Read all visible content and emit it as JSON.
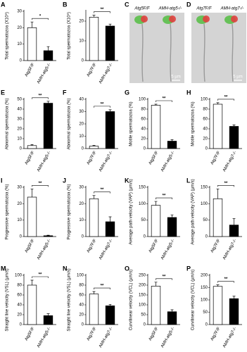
{
  "chart_data": [
    {
      "type": "bar",
      "panel": "A",
      "ylabel": "Total spermatozoa (X10⁶)",
      "categories": [
        "Atg5F/F",
        "AMH-atg5-/-"
      ],
      "values": [
        20,
        6
      ],
      "errors": [
        3.5,
        2.5
      ],
      "significance": "*",
      "colors": [
        "#ffffff",
        "#000000"
      ],
      "ylim": [
        0,
        30
      ],
      "yticks": [
        0,
        10,
        20,
        30
      ]
    },
    {
      "type": "bar",
      "panel": "B",
      "ylabel": "Total spermatozoa (X10⁶)",
      "categories": [
        "Atg7F/F",
        "AMH-atg7-/-"
      ],
      "values": [
        22,
        17.5
      ],
      "errors": [
        1,
        1
      ],
      "significance": "**",
      "colors": [
        "#ffffff",
        "#000000"
      ],
      "ylim": [
        0,
        25
      ],
      "yticks": [
        0,
        10,
        20
      ]
    },
    {
      "type": "bar",
      "panel": "E",
      "ylabel": "Abnormal spermatozoa (%)",
      "categories": [
        "Atg5F/F",
        "AMH-atg5-/-"
      ],
      "values": [
        3,
        46
      ],
      "errors": [
        1,
        2
      ],
      "significance": "**",
      "colors": [
        "#ffffff",
        "#000000"
      ],
      "ylim": [
        0,
        50
      ],
      "yticks": [
        0,
        10,
        20,
        30,
        40,
        50
      ]
    },
    {
      "type": "bar",
      "panel": "F",
      "ylabel": "Abnormal spermatozoa (%)",
      "categories": [
        "Atg7F/F",
        "AMH-atg7-/-"
      ],
      "values": [
        2,
        30
      ],
      "errors": [
        0.5,
        1.5
      ],
      "significance": "**",
      "colors": [
        "#ffffff",
        "#000000"
      ],
      "ylim": [
        0,
        40
      ],
      "yticks": [
        0,
        10,
        20,
        30,
        40
      ]
    },
    {
      "type": "bar",
      "panel": "G",
      "ylabel": "Motile spermatozoa (%)",
      "categories": [
        "Atg5F/F",
        "AMH-atg5-/-"
      ],
      "values": [
        88,
        15
      ],
      "errors": [
        2,
        3
      ],
      "significance": "**",
      "colors": [
        "#ffffff",
        "#000000"
      ],
      "ylim": [
        0,
        100
      ],
      "yticks": [
        0,
        20,
        40,
        60,
        80,
        100
      ]
    },
    {
      "type": "bar",
      "panel": "H",
      "ylabel": "Motile spermatozoa (%)",
      "categories": [
        "Atg7F/F",
        "AMH-atg7-/-"
      ],
      "values": [
        90,
        45
      ],
      "errors": [
        3,
        3
      ],
      "significance": "**",
      "colors": [
        "#ffffff",
        "#000000"
      ],
      "ylim": [
        0,
        100
      ],
      "yticks": [
        0,
        20,
        40,
        60,
        80,
        100
      ]
    },
    {
      "type": "bar",
      "panel": "I",
      "ylabel": "Progressive spermatozoa (%)",
      "categories": [
        "Atg5F/F",
        "AMH-atg5-/-"
      ],
      "values": [
        24,
        0.5
      ],
      "errors": [
        5,
        0.3
      ],
      "significance": "**",
      "colors": [
        "#ffffff",
        "#000000"
      ],
      "ylim": [
        0,
        30
      ],
      "yticks": [
        0,
        10,
        20,
        30
      ]
    },
    {
      "type": "bar",
      "panel": "J",
      "ylabel": "Progressive spermatozoa (%)",
      "categories": [
        "Atg7F/F",
        "AMH-atg7-/-"
      ],
      "values": [
        23,
        9
      ],
      "errors": [
        2,
        3
      ],
      "significance": "**",
      "colors": [
        "#ffffff",
        "#000000"
      ],
      "ylim": [
        0,
        30
      ],
      "yticks": [
        0,
        10,
        20,
        30
      ]
    },
    {
      "type": "bar",
      "panel": "K",
      "ylabel": "Average path velocity (VAP) (µm/s)",
      "categories": [
        "Atg5F/F",
        "AMH-atg5-/-"
      ],
      "values": [
        95,
        58
      ],
      "errors": [
        12,
        8
      ],
      "significance": "**",
      "colors": [
        "#ffffff",
        "#000000"
      ],
      "ylim": [
        0,
        150
      ],
      "yticks": [
        0,
        50,
        100,
        150
      ]
    },
    {
      "type": "bar",
      "panel": "L",
      "ylabel": "Average path velocity (VAP) (µm/s)",
      "categories": [
        "Atg7F/F",
        "AMH-atg7-/-"
      ],
      "values": [
        115,
        35
      ],
      "errors": [
        30,
        20
      ],
      "significance": "**",
      "colors": [
        "#ffffff",
        "#000000"
      ],
      "ylim": [
        0,
        150
      ],
      "yticks": [
        0,
        50,
        100,
        150
      ]
    },
    {
      "type": "bar",
      "panel": "M",
      "ylabel": "Straight line velocity (VSL) (µm/s)",
      "categories": [
        "Atg5F/F",
        "AMH-atg5-/-"
      ],
      "values": [
        80,
        18
      ],
      "errors": [
        10,
        4
      ],
      "significance": "**",
      "colors": [
        "#ffffff",
        "#000000"
      ],
      "ylim": [
        0,
        100
      ],
      "yticks": [
        0,
        20,
        40,
        60,
        80,
        100
      ]
    },
    {
      "type": "bar",
      "panel": "N",
      "ylabel": "Straight line velocity (VSL) (µm/s)",
      "categories": [
        "Atg7F/F",
        "AMH-atg7-/-"
      ],
      "values": [
        62,
        38
      ],
      "errors": [
        5,
        3
      ],
      "significance": "**",
      "colors": [
        "#ffffff",
        "#000000"
      ],
      "ylim": [
        0,
        100
      ],
      "yticks": [
        0,
        20,
        40,
        60,
        80,
        100
      ]
    },
    {
      "type": "bar",
      "panel": "O",
      "ylabel": "Curvilinear velocity (VCL) (µm/s)",
      "categories": [
        "Atg5F/F",
        "AMH-atg5-/-"
      ],
      "values": [
        195,
        65
      ],
      "errors": [
        20,
        10
      ],
      "significance": "**",
      "colors": [
        "#ffffff",
        "#000000"
      ],
      "ylim": [
        0,
        250
      ],
      "yticks": [
        0,
        50,
        100,
        150,
        200,
        250
      ]
    },
    {
      "type": "bar",
      "panel": "P",
      "ylabel": "Curvilinear velocity (VCL) (µm/s)",
      "categories": [
        "Atg7F/F",
        "AMH-atg7-/-"
      ],
      "values": [
        155,
        105
      ],
      "errors": [
        6,
        10
      ],
      "significance": "**",
      "colors": [
        "#ffffff",
        "#000000"
      ],
      "ylim": [
        0,
        200
      ],
      "yticks": [
        0,
        50,
        100,
        150,
        200
      ]
    }
  ],
  "images": [
    {
      "panel": "C",
      "captions": [
        "Atg5F/F",
        "AMH-atg5-/-"
      ],
      "scale": "5 µm"
    },
    {
      "panel": "D",
      "captions": [
        "Atg7F/F",
        "AMH-atg7-/-"
      ],
      "scale": "5 µm"
    }
  ]
}
